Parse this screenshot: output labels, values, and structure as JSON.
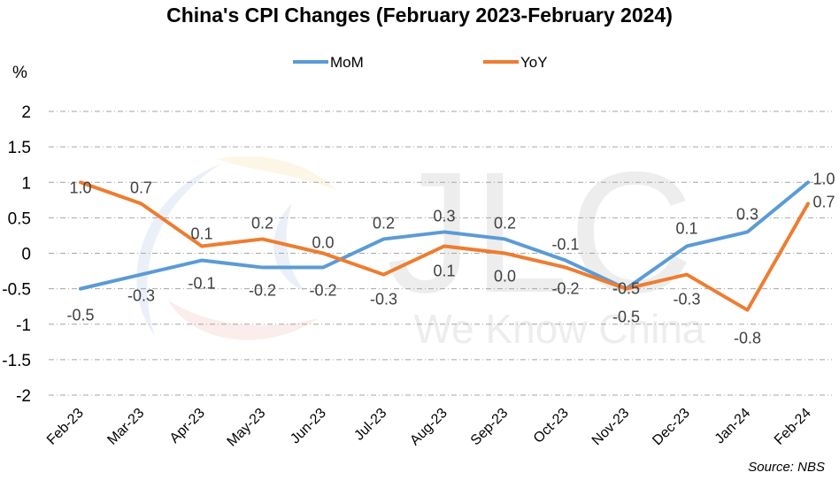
{
  "chart_data": {
    "type": "line",
    "title": "China's CPI Changes (February 2023-February 2024)",
    "ylabel": "%",
    "xlabel": "",
    "categories": [
      "Feb-23",
      "Mar-23",
      "Apr-23",
      "May-23",
      "Jun-23",
      "Jul-23",
      "Aug-23",
      "Sep-23",
      "Oct-23",
      "Nov-23",
      "Dec-23",
      "Jan-24",
      "Feb-24"
    ],
    "ylim": [
      -2,
      2
    ],
    "yticks": [
      "2",
      "1.5",
      "1",
      "0.5",
      "0",
      "-0.5",
      "-1",
      "-1.5",
      "-2"
    ],
    "grid": true,
    "legend_position": "top-center",
    "series": [
      {
        "name": "MoM",
        "color": "#5b9bd5",
        "values": [
          -0.5,
          -0.3,
          -0.1,
          -0.2,
          -0.2,
          0.2,
          0.3,
          0.2,
          -0.1,
          -0.5,
          0.1,
          0.3,
          1.0
        ],
        "labels": [
          "-0.5",
          "-0.3",
          "-0.1",
          "-0.2",
          "-0.2",
          "0.2",
          "0.3",
          "0.2",
          "-0.1",
          "-0.5",
          "0.1",
          "0.3",
          "1.0"
        ]
      },
      {
        "name": "YoY",
        "color": "#ed7d31",
        "values": [
          1.0,
          0.7,
          0.1,
          0.2,
          0.0,
          -0.3,
          0.1,
          0.0,
          -0.2,
          -0.5,
          -0.3,
          -0.8,
          0.7
        ],
        "labels": [
          "1.0",
          "0.7",
          "0.1",
          "0.2",
          "0.0",
          "-0.3",
          "0.1",
          "0.0",
          "-0.2",
          "-0.5",
          "-0.3",
          "-0.8",
          "0.7"
        ]
      }
    ],
    "source": "Source: NBS"
  },
  "watermark": {
    "logo_text": "JLC",
    "tagline": "We Know China"
  }
}
